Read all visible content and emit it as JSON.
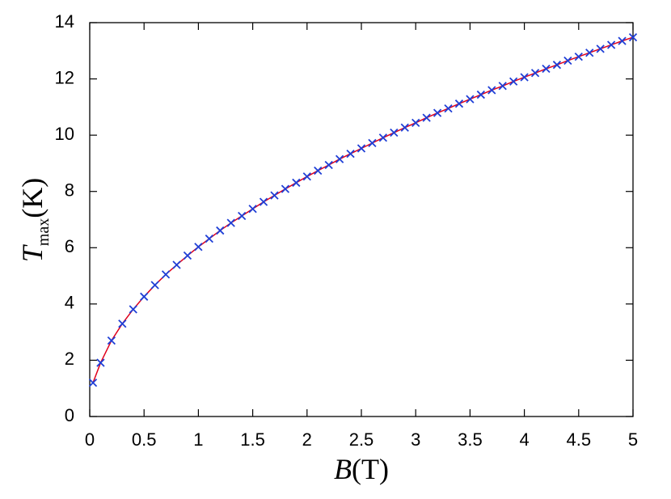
{
  "chart_data": {
    "type": "line",
    "xlabel": {
      "symbol": "B",
      "unit": "T"
    },
    "ylabel": {
      "symbol": "T",
      "subscript": "max",
      "unit": "K"
    },
    "x": [
      0.03,
      0.1,
      0.2,
      0.3,
      0.4,
      0.5,
      0.6,
      0.7,
      0.8,
      0.9,
      1.0,
      1.1,
      1.2,
      1.3,
      1.4,
      1.5,
      1.6,
      1.7,
      1.8,
      1.9,
      2.0,
      2.1,
      2.2,
      2.3,
      2.4,
      2.5,
      2.6,
      2.7,
      2.8,
      2.9,
      3.0,
      3.1,
      3.2,
      3.3,
      3.4,
      3.5,
      3.6,
      3.7,
      3.8,
      3.9,
      4.0,
      4.1,
      4.2,
      4.3,
      4.4,
      4.5,
      4.6,
      4.7,
      4.8,
      4.9,
      5.0
    ],
    "series": [
      {
        "color": "#e0001b",
        "mode": "line",
        "values": [
          1.2,
          1.91,
          2.7,
          3.3,
          3.81,
          4.26,
          4.67,
          5.05,
          5.39,
          5.72,
          6.03,
          6.32,
          6.61,
          6.88,
          7.13,
          7.38,
          7.63,
          7.86,
          8.09,
          8.31,
          8.53,
          8.74,
          8.94,
          9.15,
          9.34,
          9.53,
          9.72,
          9.91,
          10.09,
          10.27,
          10.44,
          10.62,
          10.79,
          10.95,
          11.12,
          11.28,
          11.44,
          11.6,
          11.75,
          11.91,
          12.06,
          12.21,
          12.36,
          12.5,
          12.65,
          12.79,
          12.93,
          13.07,
          13.21,
          13.35,
          13.48
        ]
      },
      {
        "color": "#1f3fd6",
        "mode": "markers",
        "values": [
          1.2,
          1.91,
          2.7,
          3.3,
          3.81,
          4.26,
          4.67,
          5.05,
          5.39,
          5.72,
          6.03,
          6.32,
          6.61,
          6.88,
          7.13,
          7.38,
          7.63,
          7.86,
          8.09,
          8.31,
          8.53,
          8.74,
          8.94,
          9.15,
          9.34,
          9.53,
          9.72,
          9.91,
          10.09,
          10.27,
          10.44,
          10.62,
          10.79,
          10.95,
          11.12,
          11.28,
          11.44,
          11.6,
          11.75,
          11.91,
          12.06,
          12.21,
          12.36,
          12.5,
          12.65,
          12.79,
          12.93,
          13.07,
          13.21,
          13.35,
          13.48
        ]
      }
    ],
    "xlim": [
      0,
      5
    ],
    "xticks": [
      0,
      0.5,
      1,
      1.5,
      2,
      2.5,
      3,
      3.5,
      4,
      4.5,
      5
    ],
    "ylim": [
      0,
      14
    ],
    "yticks": [
      0,
      2,
      4,
      6,
      8,
      10,
      12,
      14
    ]
  }
}
